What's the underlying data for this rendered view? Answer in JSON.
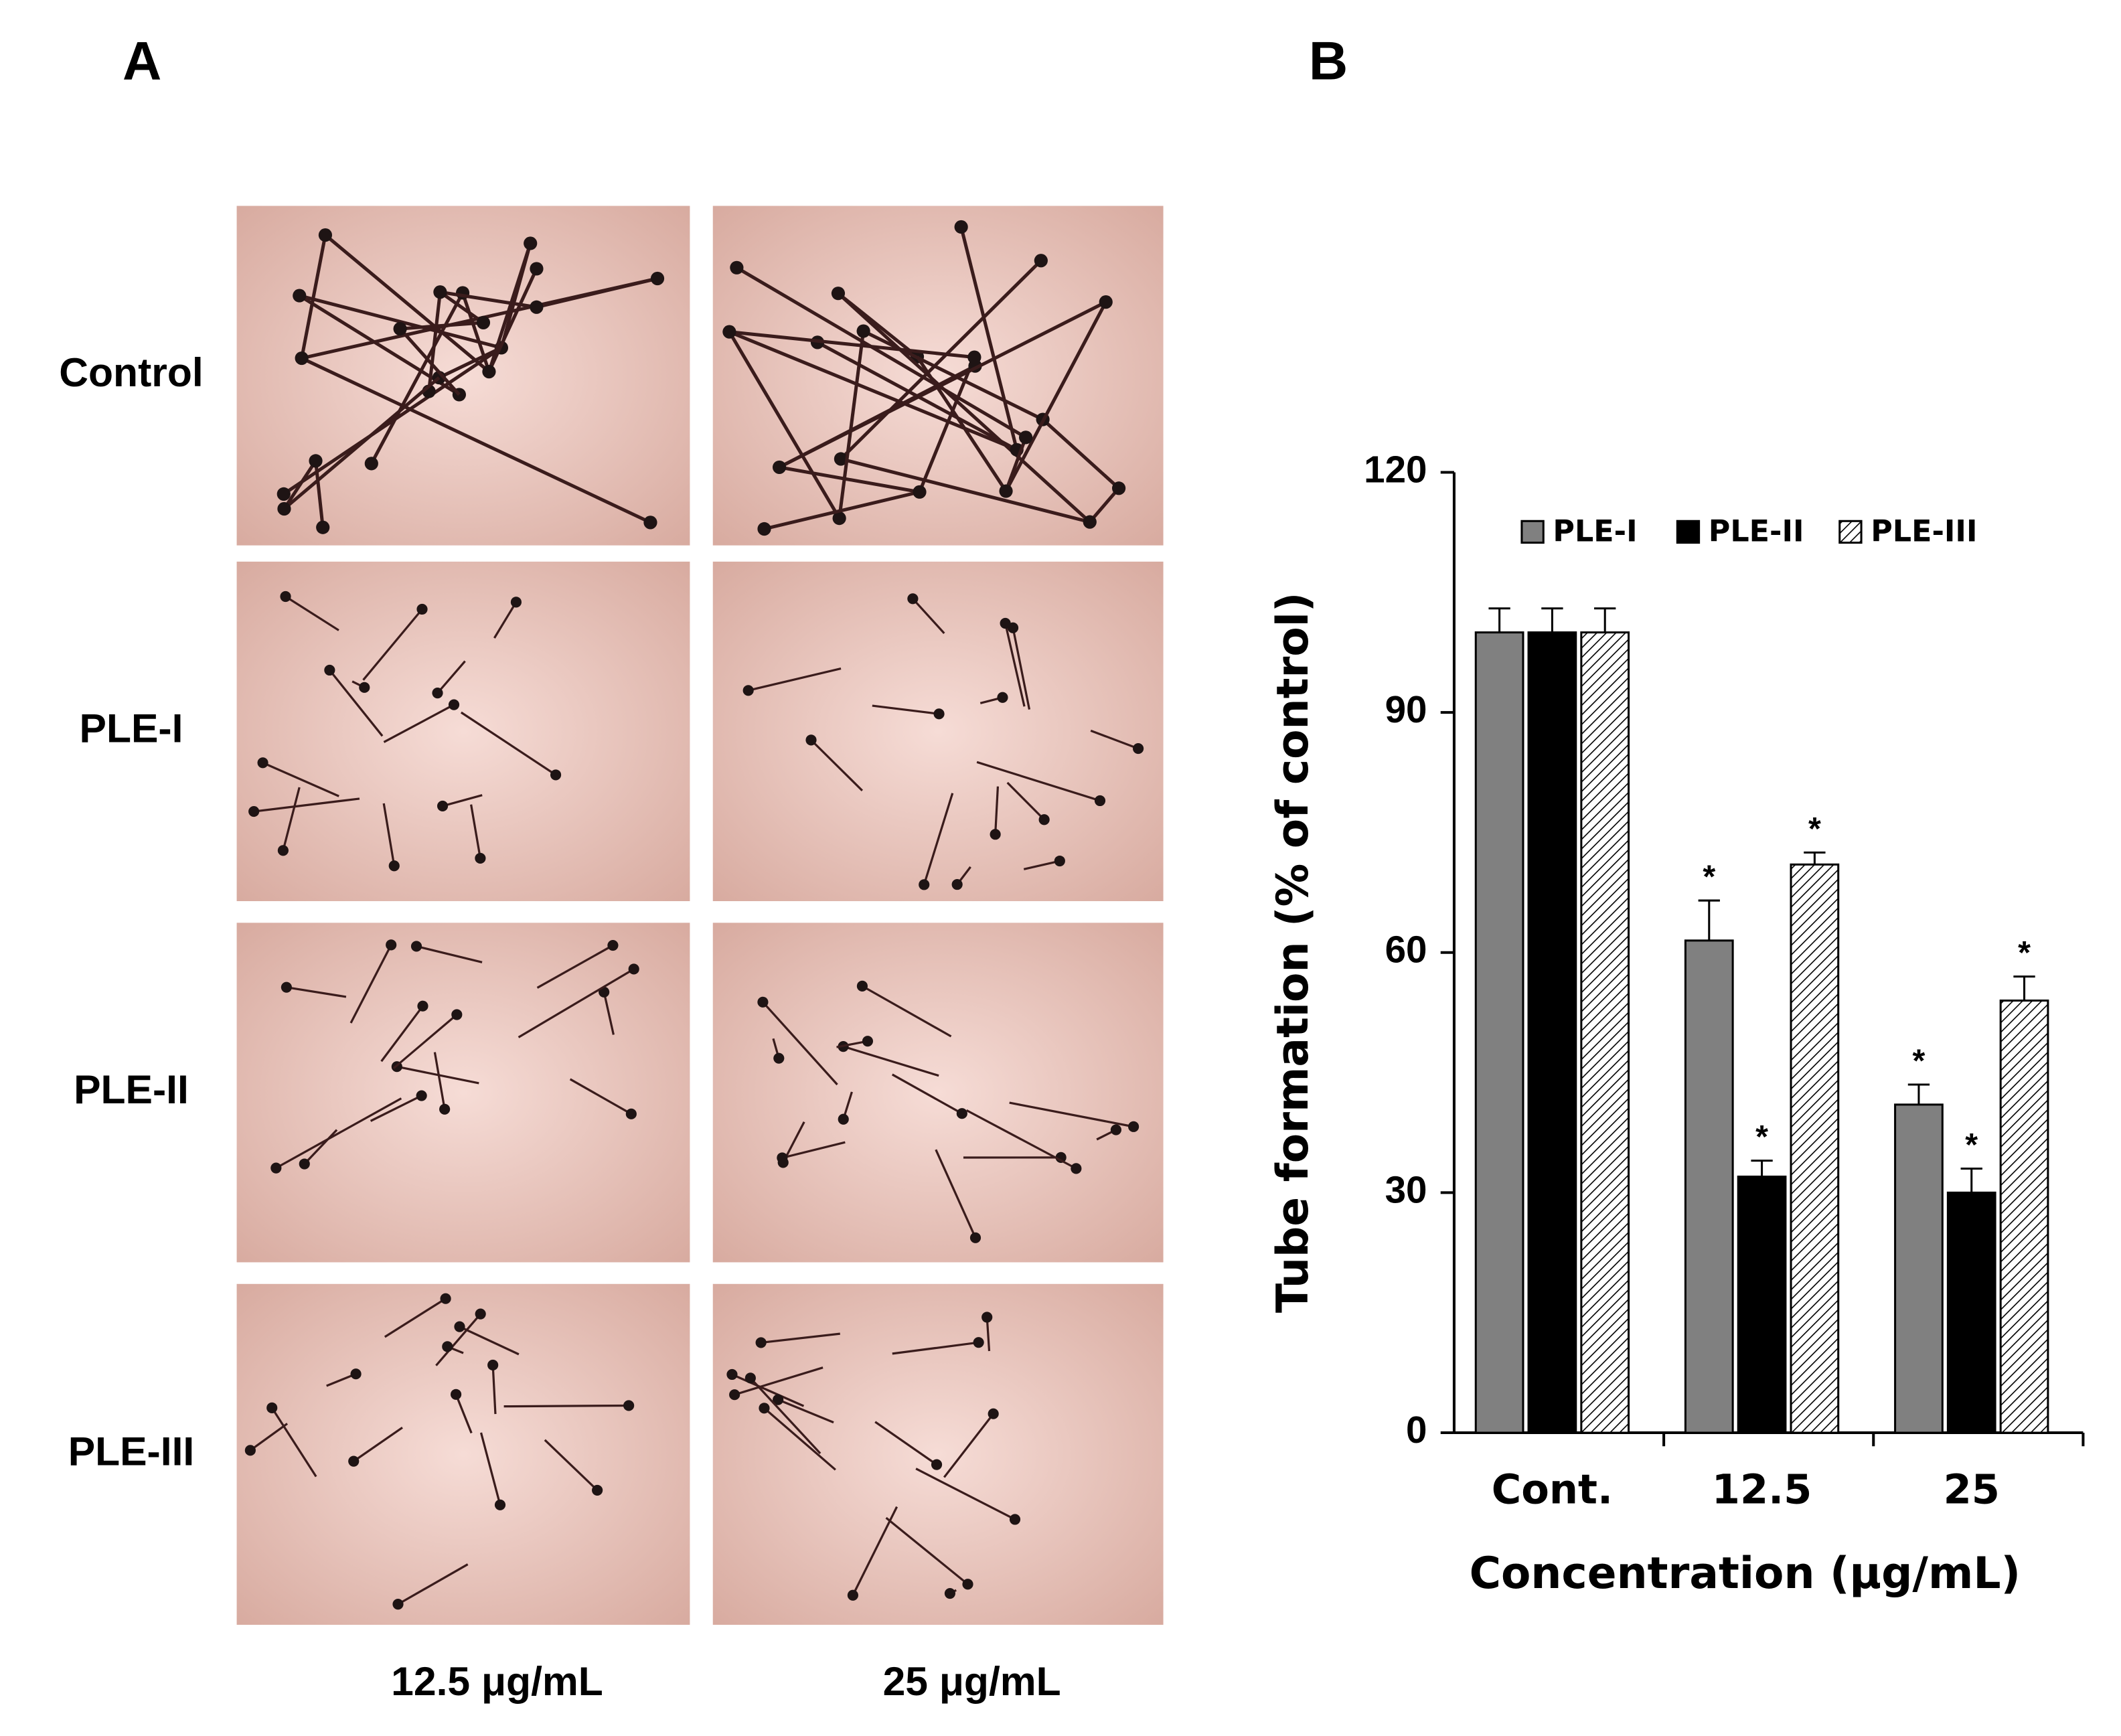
{
  "panel_a": {
    "label": "A",
    "rows": [
      "Control",
      "PLE-I",
      "PLE-II",
      "PLE-III"
    ],
    "columns": [
      "12.5 μg/mL",
      "25 μg/mL"
    ]
  },
  "chart_data": {
    "type": "bar",
    "panel_label": "B",
    "x_label": "Concentration (μg/mL)",
    "y_label": "Tube formation (% of control)",
    "categories": [
      "Cont.",
      "12.5",
      "25"
    ],
    "series": [
      {
        "name": "PLE-I",
        "color": "#808080",
        "values": [
          100,
          61.5,
          41
        ],
        "errors": [
          3,
          5,
          2.5
        ],
        "markers": [
          null,
          "*",
          "*"
        ]
      },
      {
        "name": "PLE-II",
        "color": "#000000",
        "values": [
          100,
          32,
          30
        ],
        "errors": [
          3,
          2,
          3
        ],
        "markers": [
          null,
          "*",
          "*"
        ]
      },
      {
        "name": "PLE-III",
        "color": "#ffffff",
        "hatch": true,
        "values": [
          100,
          71,
          54
        ],
        "errors": [
          3,
          1.5,
          3
        ],
        "markers": [
          null,
          "*",
          "*"
        ]
      }
    ],
    "ylim": [
      0,
      120
    ],
    "yticks": [
      0,
      30,
      60,
      90,
      120
    ],
    "legend": "top"
  }
}
